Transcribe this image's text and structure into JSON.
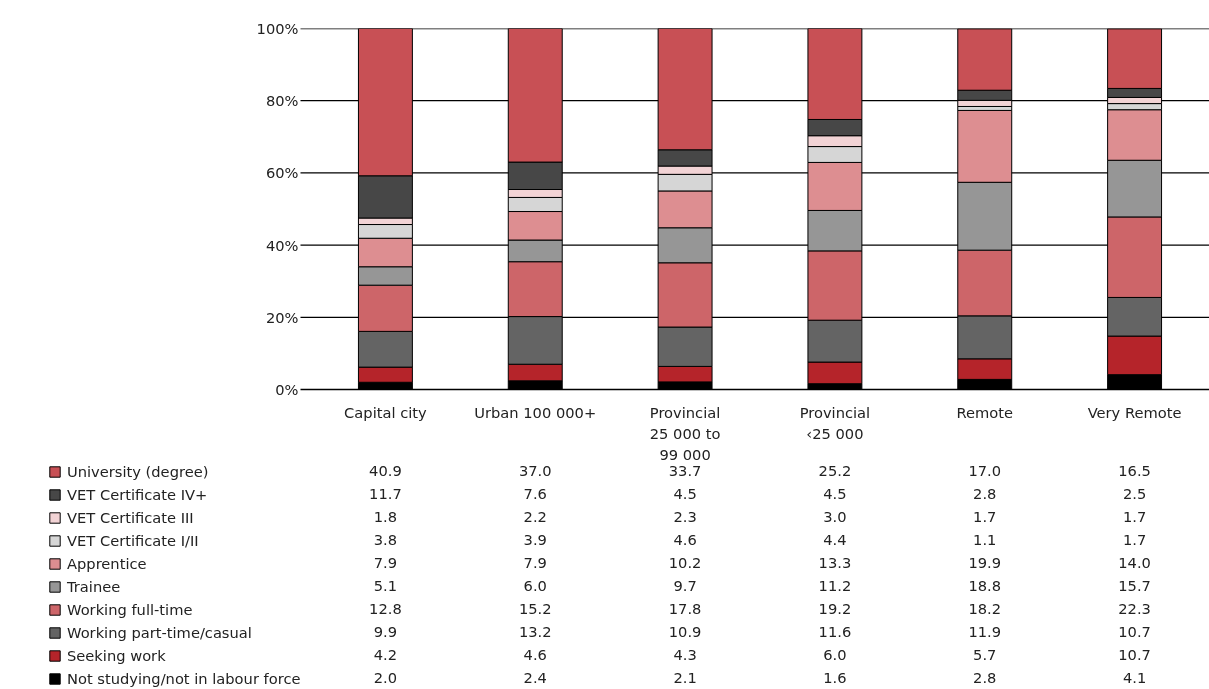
{
  "chart_data": {
    "type": "bar",
    "stacked": true,
    "grid": "y",
    "legend": "bottom left",
    "categories": [
      "Capital city",
      "Urban 100 000+",
      "Provincial\n25 000 to\n99 000",
      "Provincial\n‹25 000",
      "Remote",
      "Very Remote"
    ],
    "ylim": [
      0,
      100
    ],
    "yticks": [
      {
        "value": 0,
        "label": "0%"
      },
      {
        "value": 20,
        "label": "20%"
      },
      {
        "value": 40,
        "label": "40%"
      },
      {
        "value": 60,
        "label": "60%"
      },
      {
        "value": 80,
        "label": "80%"
      },
      {
        "value": 100,
        "label": "100%"
      }
    ],
    "series": [
      {
        "name": "Not studying/not in labour force",
        "color": "#000000",
        "values": [
          2.0,
          2.4,
          2.1,
          1.6,
          2.8,
          4.1
        ],
        "value_labels": [
          "2.0",
          "2.4",
          "2.1",
          "1.6",
          "2.8",
          "4.1"
        ]
      },
      {
        "name": "Seeking work",
        "color": "#b5242a",
        "values": [
          4.2,
          4.6,
          4.3,
          6.0,
          5.7,
          10.7
        ],
        "value_labels": [
          "4.2",
          "4.6",
          "4.3",
          "6.0",
          "5.7",
          "10.7"
        ]
      },
      {
        "name": "Working part-time/casual",
        "color": "#646464",
        "values": [
          9.9,
          13.2,
          10.9,
          11.6,
          11.9,
          10.7
        ],
        "value_labels": [
          "9.9",
          "13.2",
          "10.9",
          "11.6",
          "11.9",
          "10.7"
        ]
      },
      {
        "name": "Working full-time",
        "color": "#cd6569",
        "values": [
          12.8,
          15.2,
          17.8,
          19.2,
          18.2,
          22.3
        ],
        "value_labels": [
          "12.8",
          "15.2",
          "17.8",
          "19.2",
          "18.2",
          "22.3"
        ]
      },
      {
        "name": "Trainee",
        "color": "#969696",
        "values": [
          5.1,
          6.0,
          9.7,
          11.2,
          18.8,
          15.7
        ],
        "value_labels": [
          "5.1",
          "6.0",
          "9.7",
          "11.2",
          "18.8",
          "15.7"
        ]
      },
      {
        "name": "Apprentice",
        "color": "#dd8e91",
        "values": [
          7.9,
          7.9,
          10.2,
          13.3,
          19.9,
          14.0
        ],
        "value_labels": [
          "7.9",
          "7.9",
          "10.2",
          "13.3",
          "19.9",
          "14.0"
        ]
      },
      {
        "name": "VET Certificate I/II",
        "color": "#d6d6d6",
        "values": [
          3.8,
          3.9,
          4.6,
          4.4,
          1.1,
          1.7
        ],
        "value_labels": [
          "3.8",
          "3.9",
          "4.6",
          "4.4",
          "1.1",
          "1.7"
        ]
      },
      {
        "name": "VET Certificate III",
        "color": "#f2d3d5",
        "values": [
          1.8,
          2.2,
          2.3,
          3.0,
          1.7,
          1.7
        ],
        "value_labels": [
          "1.8",
          "2.2",
          "2.3",
          "3.0",
          "1.7",
          "1.7"
        ]
      },
      {
        "name": "VET Certificate IV+",
        "color": "#474747",
        "values": [
          11.7,
          7.6,
          4.5,
          4.5,
          2.8,
          2.5
        ],
        "value_labels": [
          "11.7",
          "7.6",
          "4.5",
          "4.5",
          "2.8",
          "2.5"
        ]
      },
      {
        "name": "University (degree)",
        "color": "#c85055",
        "values": [
          40.9,
          37.0,
          33.7,
          25.2,
          17.0,
          16.5
        ],
        "value_labels": [
          "40.9",
          "37.0",
          "33.7",
          "25.2",
          "17.0",
          "16.5"
        ]
      }
    ]
  }
}
